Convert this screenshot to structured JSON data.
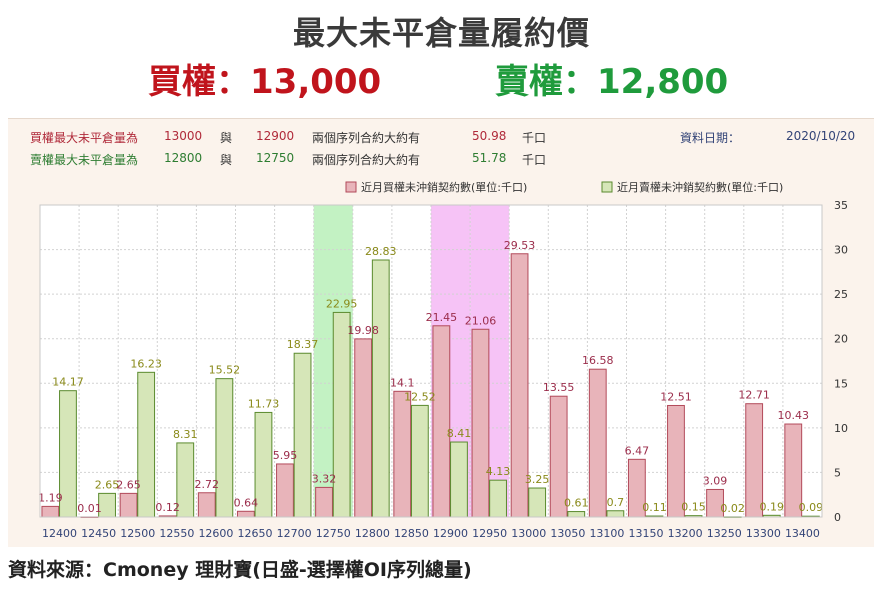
{
  "header": {
    "title": "最大未平倉量履約價",
    "call_summary": "買權：13,000",
    "put_summary": "賣權：12,800"
  },
  "info": {
    "call_row": {
      "label": "買權最大未平倉量為",
      "strike1": "13000",
      "conj": "與",
      "strike2": "12900",
      "desc": "兩個序列合約大約有",
      "amount": "50.98",
      "unit": "千口"
    },
    "put_row": {
      "label": "賣權最大未平倉量為",
      "strike1": "12800",
      "conj": "與",
      "strike2": "12750",
      "desc": "兩個序列合約大約有",
      "amount": "51.78",
      "unit": "千口"
    },
    "date_label": "資料日期：",
    "date_value": "2020/10/20"
  },
  "colors": {
    "call_bar": "#e8b4ba",
    "call_edge": "#b24a5a",
    "call_text": "#9b2d4b",
    "put_bar": "#d6e6b8",
    "put_edge": "#5a8a2e",
    "put_text": "#8a8a1a",
    "highlight_put": "#b8f0b8",
    "highlight_call": "#f5b8f5"
  },
  "chart_data": {
    "type": "bar",
    "categories": [
      "12400",
      "12450",
      "12500",
      "12550",
      "12600",
      "12650",
      "12700",
      "12750",
      "12800",
      "12850",
      "12900",
      "12950",
      "13000",
      "13050",
      "13100",
      "13150",
      "13200",
      "13250",
      "13300",
      "13400"
    ],
    "series": [
      {
        "name": "近月買權未沖銷契約數(單位:千口)",
        "values": [
          1.19,
          0.01,
          2.65,
          0.12,
          2.72,
          0.64,
          5.95,
          3.32,
          19.98,
          14.1,
          21.45,
          21.06,
          29.53,
          13.55,
          16.58,
          6.47,
          12.51,
          3.09,
          12.71,
          10.43
        ]
      },
      {
        "name": "近月賣權未沖銷契約數(單位:千口)",
        "values": [
          14.17,
          2.65,
          16.23,
          8.31,
          15.52,
          11.73,
          18.37,
          22.95,
          28.83,
          12.52,
          8.41,
          4.13,
          3.25,
          0.61,
          0.7,
          0.11,
          0.15,
          0.02,
          0.19,
          0.09
        ]
      }
    ],
    "y_ticks": [
      "0",
      "5",
      "10",
      "15",
      "20",
      "25",
      "30",
      "35"
    ],
    "ylim": [
      0,
      35
    ],
    "grid": true,
    "legend_position": "top-right",
    "highlight_put_categories": [
      "12750"
    ],
    "highlight_call_categories": [
      "12900",
      "12950"
    ]
  },
  "footer": {
    "source": "資料來源：Cmoney 理財寶(日盛-選擇權OI序列總量)"
  }
}
